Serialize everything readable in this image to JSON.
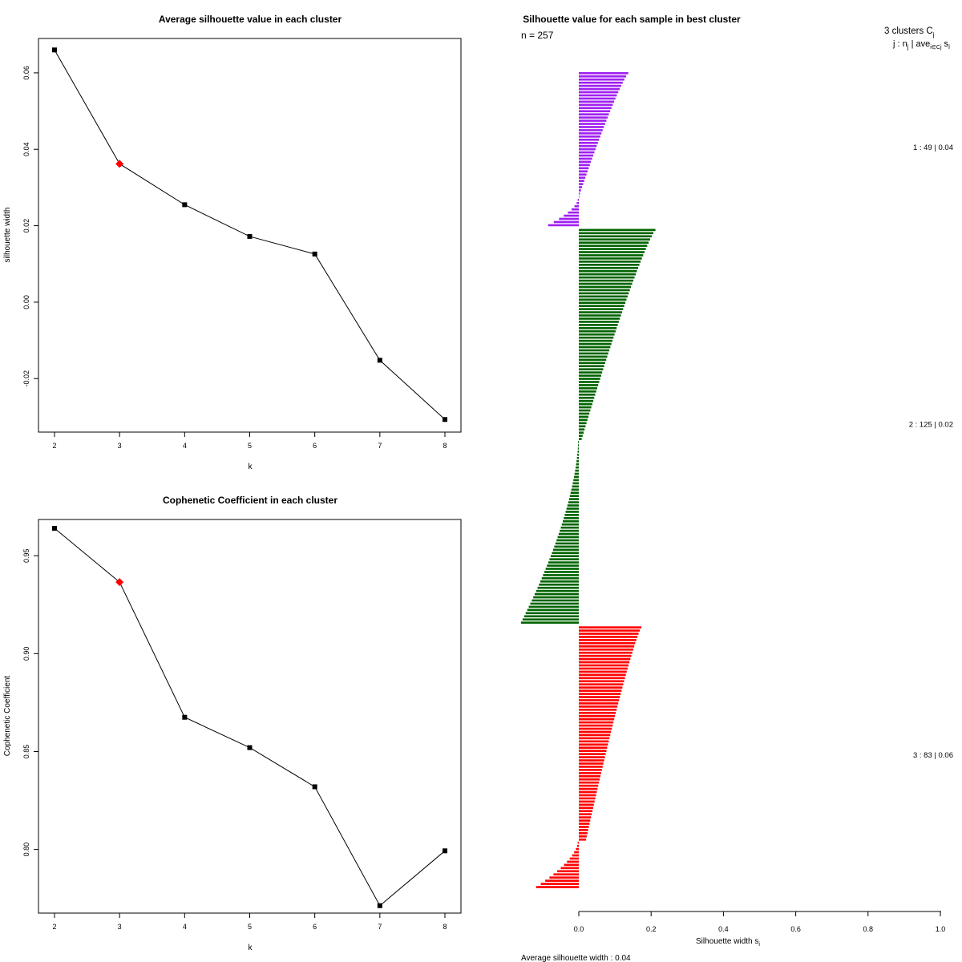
{
  "chart_data": [
    {
      "type": "line",
      "title": "Average silhouette value in each cluster",
      "xlabel": "k",
      "ylabel": "silhouette width",
      "x": [
        2,
        3,
        4,
        5,
        6,
        7,
        8
      ],
      "values": [
        0.066,
        0.0362,
        0.0255,
        0.0172,
        0.0126,
        -0.0152,
        -0.0307
      ],
      "highlight_k": 3,
      "xlim": [
        2,
        8
      ],
      "ylim": [
        -0.034,
        0.069
      ],
      "xticks": [
        "2",
        "3",
        "4",
        "5",
        "6",
        "7",
        "8"
      ],
      "yticks": [
        "-0.02",
        "0.00",
        "0.02",
        "0.04",
        "0.06"
      ],
      "ytick_values": [
        -0.02,
        0.0,
        0.02,
        0.04,
        0.06
      ]
    },
    {
      "type": "line",
      "title": "Cophenetic Coefficient in each cluster",
      "xlabel": "k",
      "ylabel": "Cophenetic Coefficient",
      "x": [
        2,
        3,
        4,
        5,
        6,
        7,
        8
      ],
      "values": [
        0.964,
        0.9365,
        0.8675,
        0.852,
        0.832,
        0.7713,
        0.7993
      ],
      "highlight_k": 3,
      "xlim": [
        2,
        8
      ],
      "ylim": [
        0.7675,
        0.9685
      ],
      "xticks": [
        "2",
        "3",
        "4",
        "5",
        "6",
        "7",
        "8"
      ],
      "yticks": [
        "0.80",
        "0.85",
        "0.90",
        "0.95"
      ],
      "ytick_values": [
        0.8,
        0.85,
        0.9,
        0.95
      ]
    },
    {
      "type": "bar",
      "orientation": "horizontal",
      "title": "Silhouette value for each sample in best cluster",
      "subtitle": "n = 257",
      "xlabel": "Silhouette width s",
      "xlabel_sub": "i",
      "footer": "Average silhouette width :  0.04",
      "xlim": [
        0,
        1
      ],
      "xticks": [
        "0.0",
        "0.2",
        "0.4",
        "0.6",
        "0.8",
        "1.0"
      ],
      "xtick_values": [
        0.0,
        0.2,
        0.4,
        0.6,
        0.8,
        1.0
      ],
      "legend_header_1": "3  clusters  C",
      "legend_header_1_sub": "j",
      "legend_header_2": "j :  n",
      "legend_header_2_sub1": "j",
      "legend_header_2_mid": " | ave",
      "legend_header_2_sub2": "i∈Cj",
      "legend_header_2_end": "  s",
      "legend_header_2_sub3": "i",
      "clusters": [
        {
          "label": "1 :   49  |  0.04",
          "n": 49,
          "avg": 0.04,
          "color": "#A020F0",
          "pos_max": 0.137,
          "pos_min": 0.0,
          "pos_count": 40,
          "neg_max": -0.085,
          "neg_min": -0.003,
          "neg_count": 9
        },
        {
          "label": "2 :   125  |  0.02",
          "n": 125,
          "avg": 0.02,
          "color": "#006400",
          "pos_max": 0.212,
          "pos_min": 0.008,
          "pos_count": 67,
          "neg_max": -0.16,
          "neg_min": -0.002,
          "neg_count": 58
        },
        {
          "label": "3 :   83  |  0.06",
          "n": 83,
          "avg": 0.06,
          "color": "#FF0000",
          "pos_max": 0.173,
          "pos_min": 0.02,
          "pos_count": 68,
          "neg_max": -0.118,
          "neg_min": -0.003,
          "neg_count": 15
        }
      ]
    }
  ]
}
